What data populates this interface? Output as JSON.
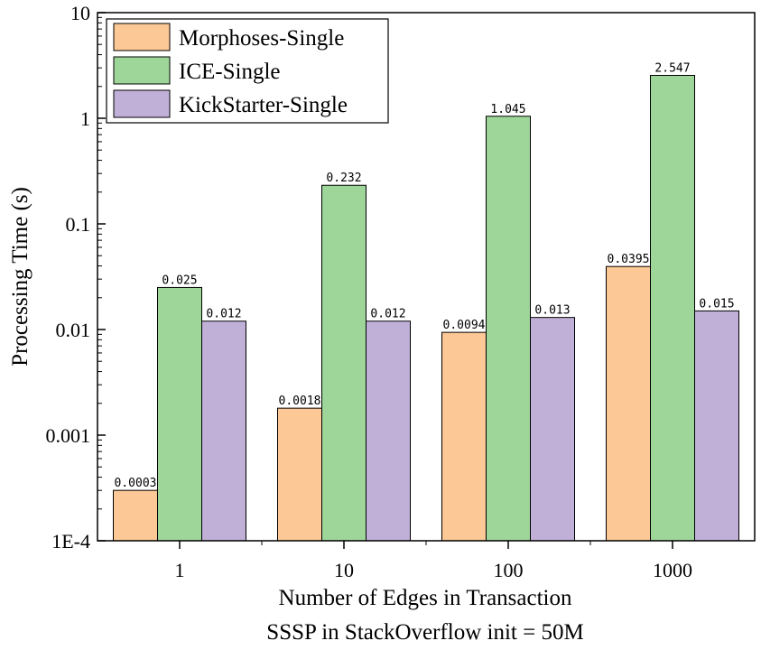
{
  "chart_data": {
    "type": "bar",
    "title": "",
    "xlabel": "Number of Edges in Transaction",
    "subtitle": "SSSP in StackOverflow init = 50M",
    "ylabel": "Processing Time (s)",
    "yscale": "log",
    "ylim": [
      0.0001,
      10
    ],
    "yticks": [
      {
        "value": 10,
        "label": "10"
      },
      {
        "value": 1,
        "label": "1"
      },
      {
        "value": 0.1,
        "label": "0.1"
      },
      {
        "value": 0.01,
        "label": "0.01"
      },
      {
        "value": 0.001,
        "label": "0.001"
      },
      {
        "value": 0.0001,
        "label": "1E-4"
      }
    ],
    "categories": [
      "1",
      "10",
      "100",
      "1000"
    ],
    "legend_position": "top-left",
    "series": [
      {
        "name": "Morphoses-Single",
        "color": "#fcc895",
        "values": [
          0.0003,
          0.0018,
          0.0094,
          0.0395
        ],
        "labels": [
          "0.0003",
          "0.0018",
          "0.0094",
          "0.0395"
        ]
      },
      {
        "name": "ICE-Single",
        "color": "#9ed69a",
        "values": [
          0.025,
          0.232,
          1.045,
          2.547
        ],
        "labels": [
          "0.025",
          "0.232",
          "1.045",
          "2.547"
        ]
      },
      {
        "name": "KickStarter-Single",
        "color": "#c0b0d8",
        "values": [
          0.012,
          0.012,
          0.013,
          0.015
        ],
        "labels": [
          "0.012",
          "0.012",
          "0.013",
          "0.015"
        ]
      }
    ]
  }
}
